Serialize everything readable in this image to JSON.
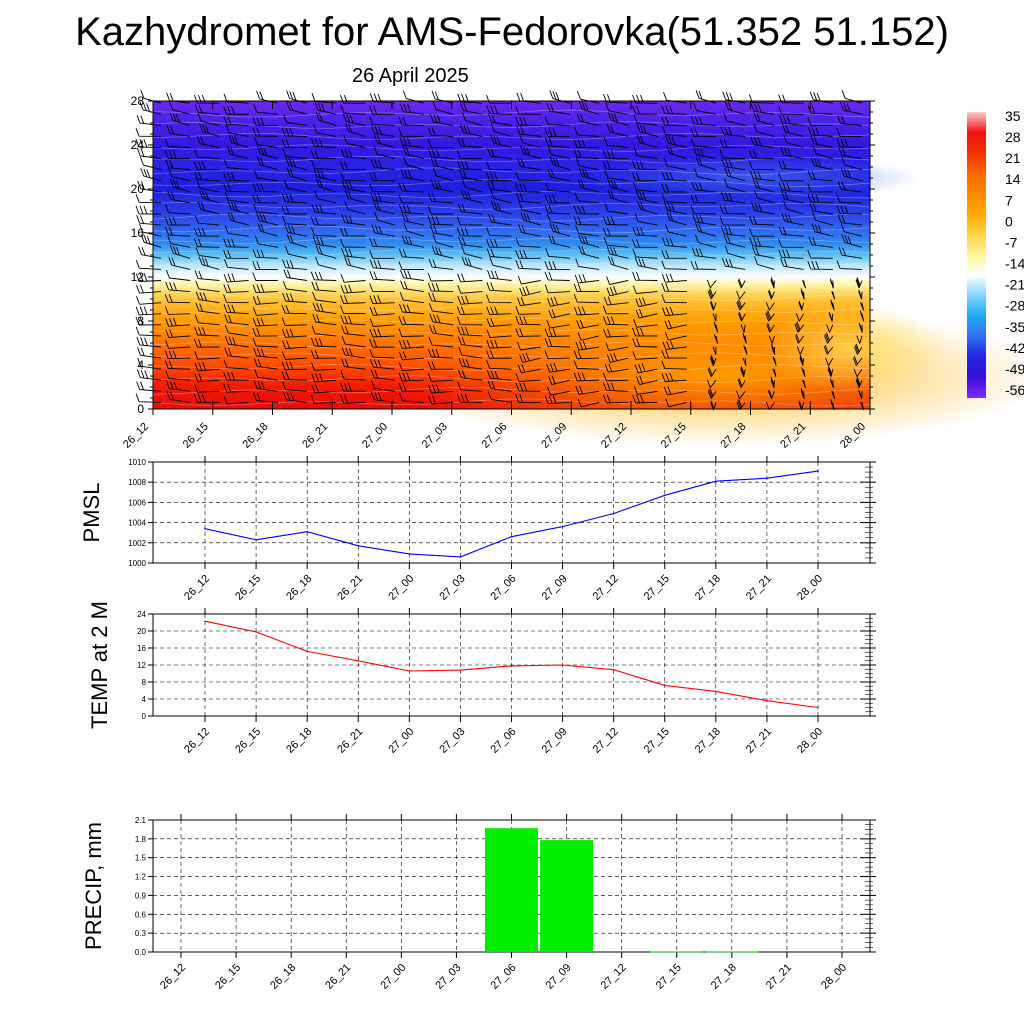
{
  "title": "Kazhydromet for AMS-Fedorovka(51.352 51.152)",
  "subtitle": "26 April 2025",
  "chart_data": [
    {
      "type": "heatmap",
      "title": "",
      "x_ticks": [
        "26_12",
        "26_15",
        "26_18",
        "26_21",
        "27_00",
        "27_03",
        "27_06",
        "27_09",
        "27_12",
        "27_15",
        "27_18",
        "27_21",
        "28_00"
      ],
      "y_ticks": [
        0,
        4,
        8,
        12,
        16,
        20,
        24,
        28
      ],
      "ylim": [
        0,
        28
      ],
      "colorbar": {
        "labels": [
          "35",
          "28",
          "21",
          "14",
          "7",
          "0",
          "-7",
          "-14",
          "-21",
          "-28",
          "-35",
          "-42",
          "-49",
          "-56"
        ],
        "stops": [
          "#ffcccc",
          "#ee1111",
          "#ee3300",
          "#ff6600",
          "#ff8800",
          "#ffaa00",
          "#ffd24a",
          "#fff59a",
          "#ffffff",
          "#7fd3ff",
          "#1fa8f0",
          "#2f6ff0",
          "#2424e0",
          "#3b10d8",
          "#7a2cff"
        ]
      },
      "wind_barbs": true,
      "grid": false
    },
    {
      "type": "line",
      "ylabel": "PMSL",
      "categories": [
        "26_12",
        "26_15",
        "26_18",
        "26_21",
        "27_00",
        "27_03",
        "27_06",
        "27_09",
        "27_12",
        "27_15",
        "27_18",
        "27_21",
        "28_00"
      ],
      "series": [
        {
          "values": [
            1003.4,
            1002.3,
            1003.1,
            1001.7,
            1000.9,
            1000.6,
            1002.6,
            1003.6,
            1004.9,
            1006.7,
            1008.1,
            1008.4,
            1009.1
          ],
          "color": "#0000ff"
        }
      ],
      "yticks": [
        "1000",
        "1002",
        "1004",
        "1006",
        "1008",
        "1010"
      ],
      "ylim": [
        1000,
        1010
      ],
      "grid": true
    },
    {
      "type": "line",
      "ylabel": "TEMP at 2 M",
      "categories": [
        "26_12",
        "26_15",
        "26_18",
        "26_21",
        "27_00",
        "27_03",
        "27_06",
        "27_09",
        "27_12",
        "27_15",
        "27_18",
        "27_21",
        "28_00"
      ],
      "series": [
        {
          "values": [
            22.3,
            19.8,
            15.2,
            13.0,
            10.6,
            10.8,
            11.8,
            12.0,
            10.9,
            7.2,
            5.8,
            3.6,
            2.0
          ],
          "color": "#ff0000"
        }
      ],
      "yticks": [
        "0",
        "4",
        "8",
        "12",
        "16",
        "20",
        "24"
      ],
      "ylim": [
        0,
        24
      ],
      "grid": true
    },
    {
      "type": "bar",
      "ylabel": "PRECIP, mm",
      "categories": [
        "26_12",
        "26_15",
        "26_18",
        "26_21",
        "27_00",
        "27_03",
        "27_06",
        "27_09",
        "27_12",
        "27_15",
        "27_18",
        "27_21",
        "28_00"
      ],
      "values": [
        0,
        0,
        0,
        0,
        0,
        0,
        1.97,
        1.78,
        0,
        0.01,
        0.01,
        0,
        0
      ],
      "bar_color": "#00ee00",
      "yticks": [
        "0.0",
        "0.3",
        "0.6",
        "0.9",
        "1.2",
        "1.5",
        "1.8",
        "2.1"
      ],
      "ylim": [
        0,
        2.1
      ],
      "grid": true
    }
  ]
}
